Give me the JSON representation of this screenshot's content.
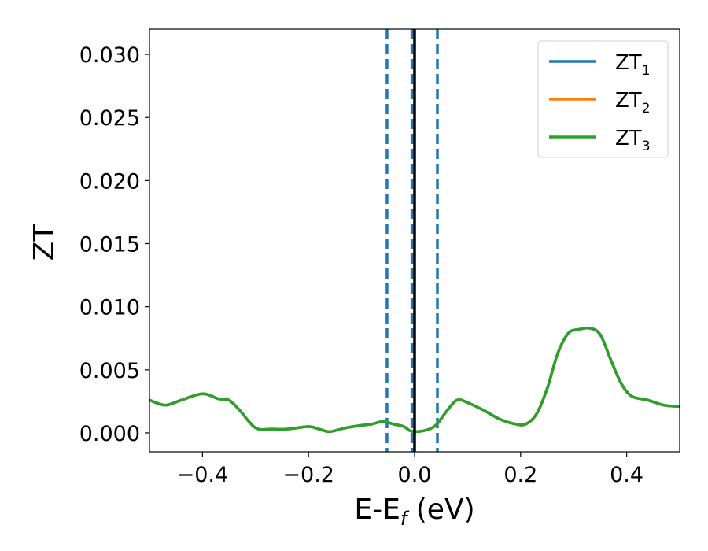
{
  "chart_data": {
    "type": "line",
    "xlabel": "E-E",
    "xlabel_sub": "f",
    "xlabel_unit": " (eV)",
    "ylabel": "ZT",
    "xlim": [
      -0.5,
      0.5
    ],
    "ylim": [
      -0.0015,
      0.032
    ],
    "xticks": [
      -0.4,
      -0.2,
      0.0,
      0.2,
      0.4
    ],
    "xtick_labels": [
      "−0.4",
      "−0.2",
      "0.0",
      "0.2",
      "0.4"
    ],
    "yticks": [
      0.0,
      0.005,
      0.01,
      0.015,
      0.02,
      0.025,
      0.03
    ],
    "ytick_labels": [
      "0.000",
      "0.005",
      "0.010",
      "0.015",
      "0.020",
      "0.025",
      "0.030"
    ],
    "grid": false,
    "legend_position": "top-right",
    "series": [
      {
        "name": "ZT",
        "subscript": "1",
        "color": "#1f77b4",
        "x": [
          -0.5,
          -0.47,
          -0.44,
          -0.4,
          -0.37,
          -0.35,
          -0.33,
          -0.3,
          -0.27,
          -0.24,
          -0.2,
          -0.18,
          -0.16,
          -0.13,
          -0.1,
          -0.08,
          -0.06,
          -0.04,
          -0.02,
          -0.01,
          0.0,
          0.02,
          0.04,
          0.06,
          0.08,
          0.1,
          0.13,
          0.16,
          0.19,
          0.21,
          0.23,
          0.25,
          0.27,
          0.29,
          0.31,
          0.33,
          0.35,
          0.37,
          0.39,
          0.41,
          0.44,
          0.47,
          0.5
        ],
        "y": [
          0.0026,
          0.0022,
          0.0026,
          0.0031,
          0.0027,
          0.0026,
          0.0018,
          0.0004,
          0.0003,
          0.0003,
          0.0005,
          0.0003,
          0.0001,
          0.0004,
          0.0006,
          0.0007,
          0.0009,
          0.0007,
          0.0005,
          0.0002,
          0.0001,
          0.0002,
          0.0006,
          0.0017,
          0.0026,
          0.0024,
          0.0018,
          0.0011,
          0.0007,
          0.0007,
          0.0015,
          0.0035,
          0.0063,
          0.0079,
          0.0082,
          0.0083,
          0.0078,
          0.0058,
          0.0039,
          0.0029,
          0.0026,
          0.0022,
          0.0021
        ]
      },
      {
        "name": "ZT",
        "subscript": "2",
        "color": "#ff7f0e",
        "x": [
          -0.5,
          -0.47,
          -0.44,
          -0.4,
          -0.37,
          -0.35,
          -0.33,
          -0.3,
          -0.27,
          -0.24,
          -0.2,
          -0.18,
          -0.16,
          -0.13,
          -0.1,
          -0.08,
          -0.06,
          -0.04,
          -0.02,
          -0.01,
          0.0,
          0.02,
          0.04,
          0.06,
          0.08,
          0.1,
          0.13,
          0.16,
          0.19,
          0.21,
          0.23,
          0.25,
          0.27,
          0.29,
          0.31,
          0.33,
          0.35,
          0.37,
          0.39,
          0.41,
          0.44,
          0.47,
          0.5
        ],
        "y": [
          0.0026,
          0.0022,
          0.0026,
          0.0031,
          0.0027,
          0.0026,
          0.0018,
          0.0004,
          0.0003,
          0.0003,
          0.0005,
          0.0003,
          0.0001,
          0.0004,
          0.0006,
          0.0007,
          0.0009,
          0.0007,
          0.0005,
          0.0002,
          0.0001,
          0.0002,
          0.0006,
          0.0017,
          0.0026,
          0.0024,
          0.0018,
          0.0011,
          0.0007,
          0.0007,
          0.0015,
          0.0035,
          0.0063,
          0.0079,
          0.0082,
          0.0083,
          0.0078,
          0.0058,
          0.0039,
          0.0029,
          0.0026,
          0.0022,
          0.0021
        ]
      },
      {
        "name": "ZT",
        "subscript": "3",
        "color": "#2ca02c",
        "x": [
          -0.5,
          -0.47,
          -0.44,
          -0.4,
          -0.37,
          -0.35,
          -0.33,
          -0.3,
          -0.27,
          -0.24,
          -0.2,
          -0.18,
          -0.16,
          -0.13,
          -0.1,
          -0.08,
          -0.06,
          -0.04,
          -0.02,
          -0.01,
          0.0,
          0.02,
          0.04,
          0.06,
          0.08,
          0.1,
          0.13,
          0.16,
          0.19,
          0.21,
          0.23,
          0.25,
          0.27,
          0.29,
          0.31,
          0.33,
          0.35,
          0.37,
          0.39,
          0.41,
          0.44,
          0.47,
          0.5
        ],
        "y": [
          0.0026,
          0.0022,
          0.0026,
          0.0031,
          0.0027,
          0.0026,
          0.0018,
          0.0004,
          0.0003,
          0.0003,
          0.0005,
          0.0003,
          0.0001,
          0.0004,
          0.0006,
          0.0007,
          0.0009,
          0.0007,
          0.0005,
          0.0002,
          0.0001,
          0.0002,
          0.0006,
          0.0017,
          0.0026,
          0.0024,
          0.0018,
          0.0011,
          0.0007,
          0.0007,
          0.0015,
          0.0035,
          0.0063,
          0.0079,
          0.0082,
          0.0083,
          0.0078,
          0.0058,
          0.0039,
          0.0029,
          0.0026,
          0.0022,
          0.0021
        ]
      }
    ],
    "vertical_lines": [
      {
        "x": -0.052,
        "style": "dashed",
        "color": "#1f77b4"
      },
      {
        "x": -0.005,
        "style": "dashed",
        "color": "#1f77b4"
      },
      {
        "x": 0.043,
        "style": "dashed",
        "color": "#1f77b4"
      },
      {
        "x": 0.0,
        "style": "solid",
        "color": "#000000"
      }
    ]
  }
}
